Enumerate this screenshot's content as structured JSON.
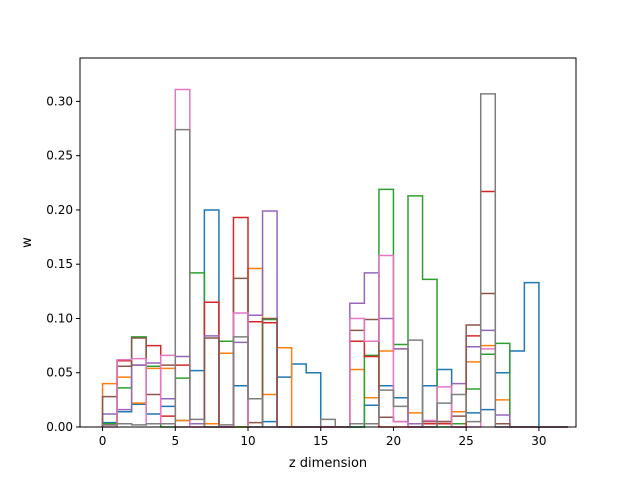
{
  "chart_data": {
    "type": "bar",
    "style": "step-histogram",
    "xlabel": "z dimension",
    "ylabel": "w",
    "xlim": [
      -1.55,
      32.55
    ],
    "ylim": [
      0,
      0.34
    ],
    "xticks": [
      0,
      5,
      10,
      15,
      20,
      25,
      30
    ],
    "yticks": [
      0.0,
      0.05,
      0.1,
      0.15,
      0.2,
      0.25,
      0.3
    ],
    "ytick_labels": [
      "0.00",
      "0.05",
      "0.10",
      "0.15",
      "0.20",
      "0.25",
      "0.30"
    ],
    "grid": false,
    "legend": "none",
    "bin_edges": [
      0,
      1,
      2,
      3,
      4,
      5,
      6,
      7,
      8,
      9,
      10,
      11,
      12,
      13,
      14,
      15,
      16,
      17,
      18,
      19,
      20,
      21,
      22,
      23,
      24,
      25,
      26,
      27,
      28,
      29,
      30,
      31,
      32
    ],
    "series": [
      {
        "color": "#1f77b4",
        "values": [
          0.004,
          0.014,
          0.021,
          0.012,
          0.019,
          0.006,
          0.052,
          0.2,
          0,
          0.038,
          0,
          0.005,
          0.046,
          0.058,
          0.05,
          0,
          0,
          0,
          0.02,
          0.038,
          0.027,
          0,
          0.038,
          0.053,
          0,
          0.013,
          0.016,
          0.05,
          0.07,
          0.133,
          0,
          0
        ]
      },
      {
        "color": "#ff7f0e",
        "values": [
          0.04,
          0.046,
          0.022,
          0.054,
          0.054,
          0.006,
          0.003,
          0.003,
          0.068,
          0,
          0.146,
          0.03,
          0.073,
          0,
          0,
          0,
          0,
          0.053,
          0.027,
          0.07,
          0.072,
          0.013,
          0,
          0.005,
          0.014,
          0.06,
          0.075,
          0.025,
          0,
          0,
          0,
          0
        ]
      },
      {
        "color": "#2ca02c",
        "values": [
          0.003,
          0.036,
          0.083,
          0.056,
          0,
          0.045,
          0.142,
          0,
          0.079,
          0,
          0,
          0.099,
          0,
          0,
          0,
          0,
          0,
          0,
          0.066,
          0.219,
          0.076,
          0.213,
          0.136,
          0,
          0.003,
          0.035,
          0.067,
          0.077,
          0,
          0,
          0,
          0
        ]
      },
      {
        "color": "#d62728",
        "values": [
          0.002,
          0.061,
          0.057,
          0.075,
          0.01,
          0.057,
          0.003,
          0.115,
          0,
          0.193,
          0.097,
          0.096,
          0,
          0,
          0,
          0,
          0,
          0.079,
          0.065,
          0,
          0,
          0,
          0.003,
          0.003,
          0,
          0.084,
          0.217,
          0.003,
          0,
          0,
          0,
          0
        ]
      },
      {
        "color": "#9467bd",
        "values": [
          0.012,
          0.016,
          0.057,
          0.059,
          0.026,
          0.065,
          0.003,
          0.084,
          0,
          0.078,
          0.103,
          0.199,
          0,
          0,
          0,
          0,
          0,
          0.114,
          0.142,
          0.1,
          0.072,
          0.003,
          0,
          0.005,
          0.04,
          0.074,
          0.089,
          0.011,
          0,
          0,
          0,
          0
        ]
      },
      {
        "color": "#8c564b",
        "values": [
          0.028,
          0.056,
          0.082,
          0.03,
          0.057,
          0,
          0,
          0.082,
          0,
          0.137,
          0.004,
          0.1,
          0,
          0,
          0,
          0,
          0,
          0.089,
          0.099,
          0.009,
          0.005,
          0,
          0.005,
          0.005,
          0.01,
          0.094,
          0.123,
          0.003,
          0,
          0,
          0,
          0
        ]
      },
      {
        "color": "#e377c2",
        "values": [
          0,
          0.062,
          0.063,
          0.003,
          0.066,
          0.311,
          0,
          0,
          0,
          0.105,
          0,
          0,
          0,
          0,
          0,
          0,
          0,
          0.1,
          0.079,
          0.158,
          0.005,
          0,
          0.006,
          0.037,
          0,
          0,
          0.072,
          0,
          0,
          0,
          0,
          0
        ]
      },
      {
        "color": "#7f7f7f",
        "values": [
          0.002,
          0.003,
          0.002,
          0.003,
          0.003,
          0.274,
          0.007,
          0,
          0.002,
          0.083,
          0.026,
          0,
          0,
          0,
          0,
          0.007,
          0,
          0.003,
          0.003,
          0.034,
          0.019,
          0.08,
          0,
          0.022,
          0.03,
          0.005,
          0.307,
          0,
          0,
          0,
          0,
          0
        ]
      }
    ]
  }
}
